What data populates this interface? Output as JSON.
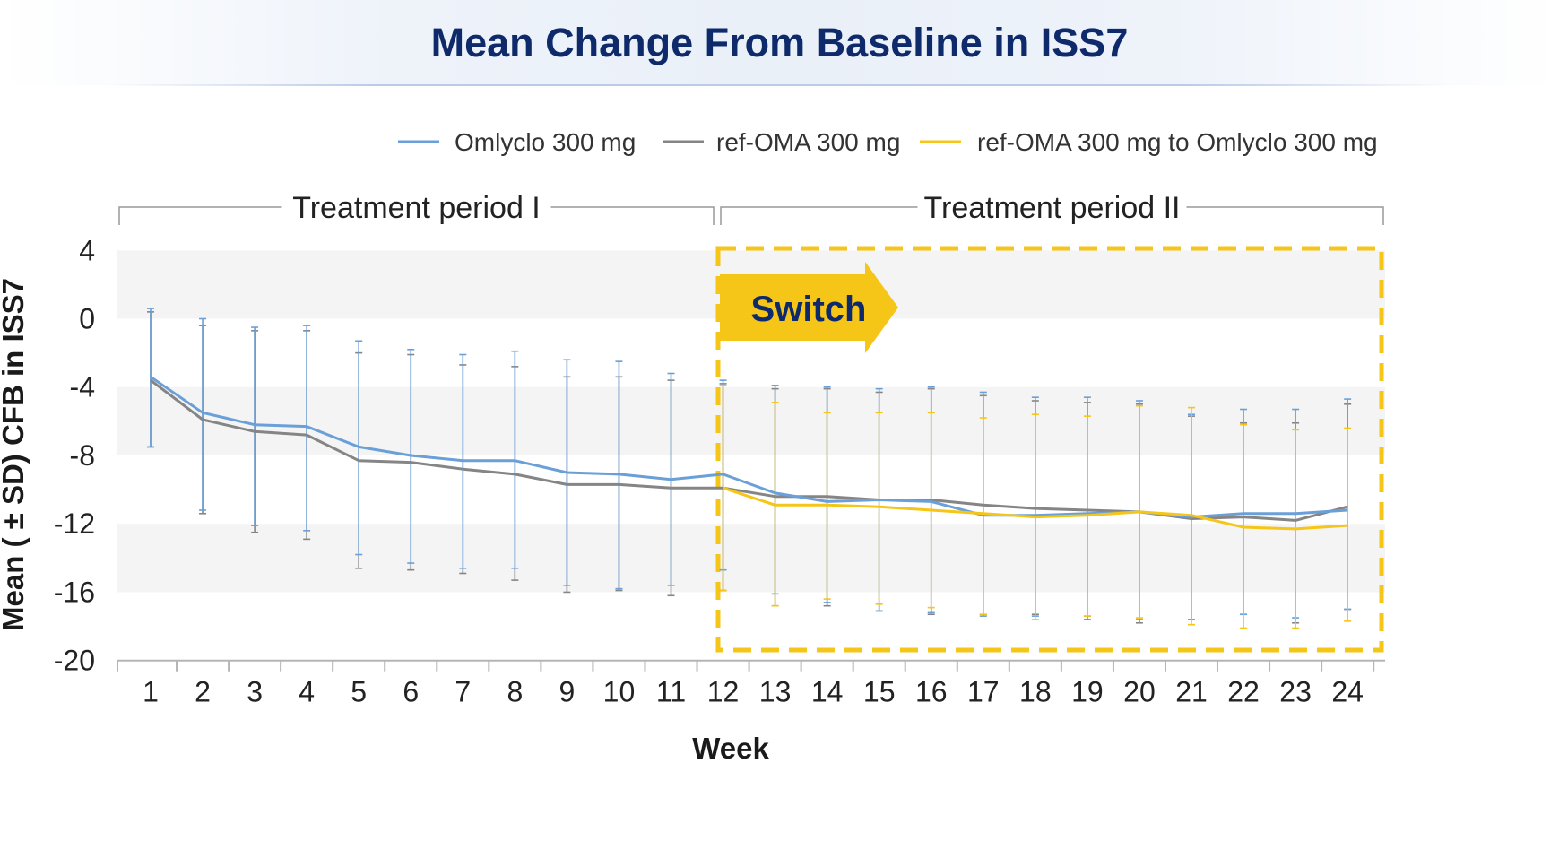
{
  "title": "Mean Change From Baseline in ISS7",
  "colors": {
    "omlyclo": "#6a9fd8",
    "ref_oma": "#858585",
    "switch": "#f5c518",
    "title": "#0f2a6b"
  },
  "periods": {
    "first": "Treatment period I",
    "second": "Treatment period II"
  },
  "switch_label": "Switch",
  "chart_data": {
    "type": "line",
    "title": "Mean Change From Baseline in ISS7",
    "xlabel": "Week",
    "ylabel": "Mean ( ± SD) CFB in ISS7",
    "ylim": [
      -20,
      4
    ],
    "yticks": [
      4,
      0,
      -4,
      -8,
      -12,
      -16,
      -20
    ],
    "x": [
      1,
      2,
      3,
      4,
      5,
      6,
      7,
      8,
      9,
      10,
      11,
      12,
      13,
      14,
      15,
      16,
      17,
      18,
      19,
      20,
      21,
      22,
      23,
      24
    ],
    "legend_position": "top-right",
    "series": [
      {
        "name": "Omlyclo 300 mg",
        "x": [
          1,
          2,
          3,
          4,
          5,
          6,
          7,
          8,
          9,
          10,
          11,
          12,
          13,
          14,
          15,
          16,
          17,
          18,
          19,
          20,
          21,
          22,
          23,
          24
        ],
        "values": [
          -3.4,
          -5.5,
          -6.2,
          -6.3,
          -7.5,
          -8.0,
          -8.3,
          -8.3,
          -9.0,
          -9.1,
          -9.4,
          -9.1,
          -10.2,
          -10.7,
          -10.6,
          -10.7,
          -11.5,
          -11.5,
          -11.4,
          -11.3,
          -11.6,
          -11.4,
          -11.4,
          -11.2
        ],
        "sd_upper": [
          0.6,
          0.0,
          -0.5,
          -0.4,
          -1.3,
          -1.8,
          -2.1,
          -1.9,
          -2.4,
          -2.5,
          -3.2,
          -3.6,
          -3.9,
          -4.0,
          -4.1,
          -4.0,
          -4.3,
          -4.6,
          -4.6,
          -4.8,
          -5.6,
          -5.3,
          -5.3,
          -4.7
        ],
        "sd_lower": [
          -7.5,
          -11.2,
          -12.1,
          -12.4,
          -13.8,
          -14.3,
          -14.6,
          -14.6,
          -15.6,
          -15.8,
          -15.6,
          -14.7,
          -16.1,
          -16.6,
          -17.1,
          -17.2,
          -17.4,
          -17.4,
          -17.4,
          -17.6,
          -17.6,
          -17.3,
          -17.5,
          -17.0
        ]
      },
      {
        "name": "ref-OMA 300 mg",
        "x": [
          1,
          2,
          3,
          4,
          5,
          6,
          7,
          8,
          9,
          10,
          11,
          12,
          13,
          14,
          15,
          16,
          17,
          18,
          19,
          20,
          21,
          22,
          23,
          24
        ],
        "values": [
          -3.6,
          -5.9,
          -6.6,
          -6.8,
          -8.3,
          -8.4,
          -8.8,
          -9.1,
          -9.7,
          -9.7,
          -9.9,
          -9.9,
          -10.4,
          -10.4,
          -10.6,
          -10.6,
          -10.9,
          -11.1,
          -11.2,
          -11.3,
          -11.7,
          -11.6,
          -11.8,
          -11.0
        ],
        "sd_upper": [
          0.4,
          -0.4,
          -0.7,
          -0.7,
          -2.0,
          -2.1,
          -2.7,
          -2.8,
          -3.4,
          -3.4,
          -3.6,
          -3.8,
          -4.1,
          -4.1,
          -4.3,
          -4.1,
          -4.5,
          -4.8,
          -4.9,
          -5.0,
          -5.7,
          -6.1,
          -6.1,
          -5.0
        ],
        "sd_lower": [
          -7.5,
          -11.4,
          -12.5,
          -12.9,
          -14.6,
          -14.7,
          -14.9,
          -15.3,
          -16.0,
          -15.9,
          -16.2,
          -15.9,
          -16.8,
          -16.8,
          -17.1,
          -17.3,
          -17.3,
          -17.3,
          -17.6,
          -17.8,
          -17.6,
          -17.3,
          -17.8,
          -17.0
        ]
      },
      {
        "name": "ref-OMA 300 mg to Omlyclo 300 mg",
        "x": [
          12,
          13,
          14,
          15,
          16,
          17,
          18,
          19,
          20,
          21,
          22,
          23,
          24
        ],
        "values": [
          -9.9,
          -10.9,
          -10.9,
          -11.0,
          -11.2,
          -11.4,
          -11.6,
          -11.5,
          -11.3,
          -11.5,
          -12.2,
          -12.3,
          -12.1
        ],
        "sd_upper": [
          -3.9,
          -4.9,
          -5.5,
          -5.5,
          -5.5,
          -5.8,
          -5.6,
          -5.7,
          -5.1,
          -5.2,
          -6.2,
          -6.5,
          -6.4
        ],
        "sd_lower": [
          -15.9,
          -16.8,
          -16.4,
          -16.7,
          -16.9,
          -17.3,
          -17.6,
          -17.4,
          -17.5,
          -17.9,
          -18.1,
          -18.1,
          -17.7
        ]
      }
    ]
  }
}
